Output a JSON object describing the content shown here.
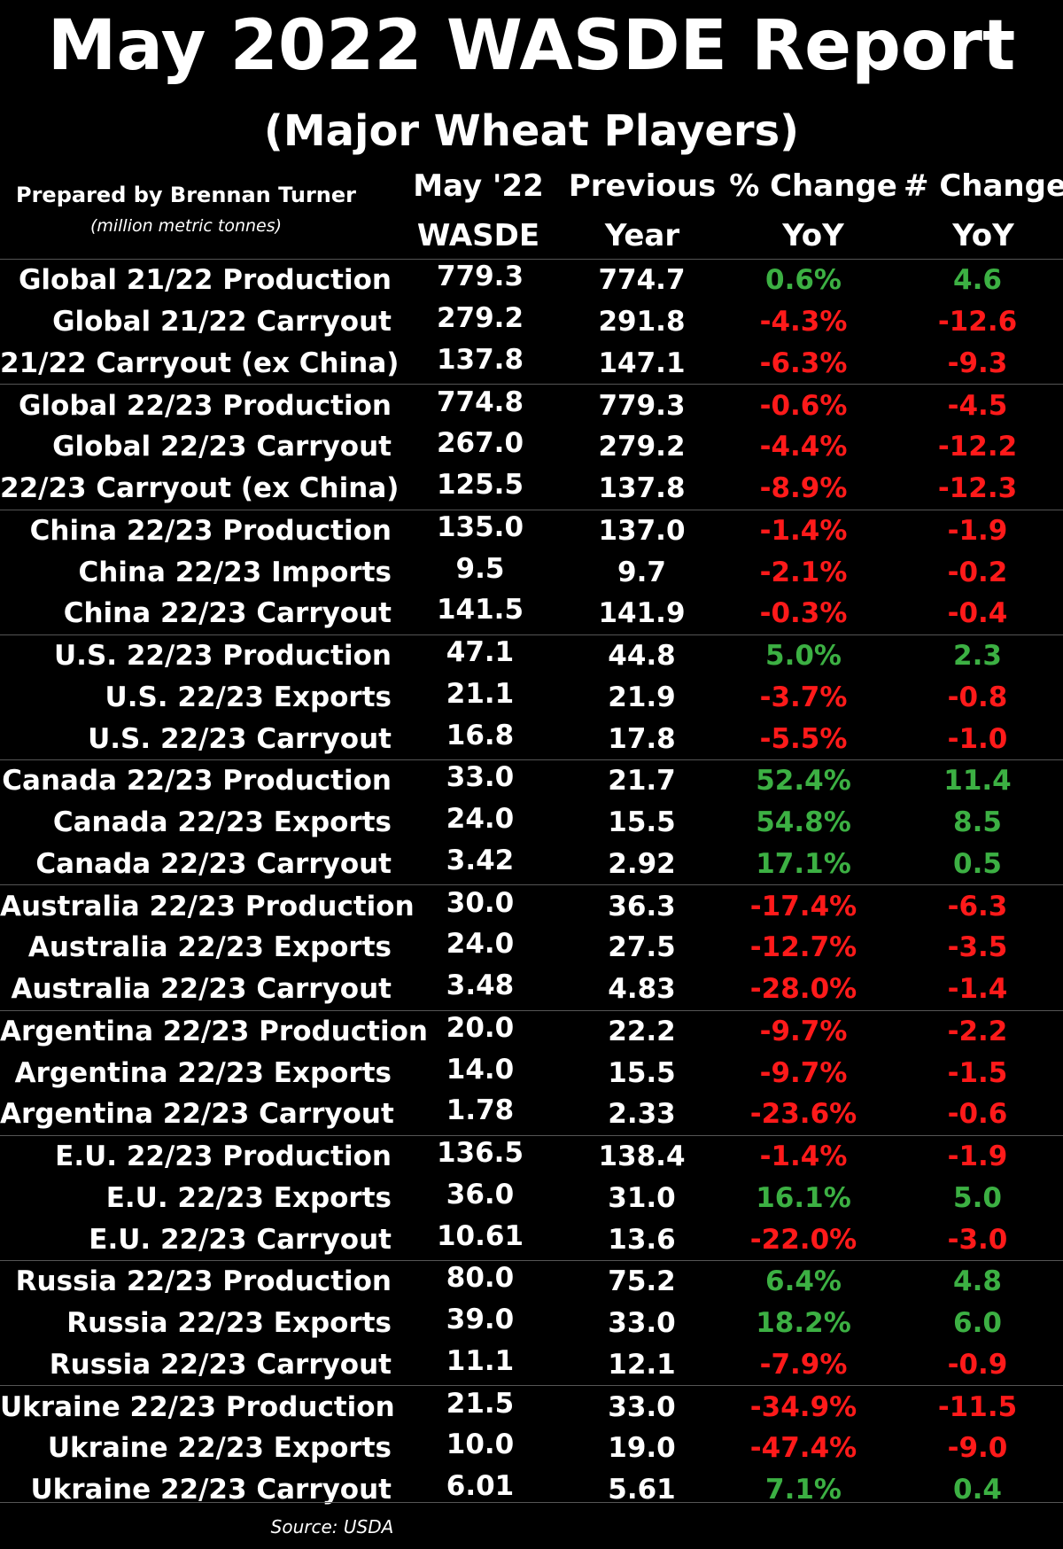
{
  "title": "May 2022 WASDE Report",
  "subtitle": "(Major Wheat Players)",
  "prepared_by": "Prepared by Brennan Turner",
  "units": "(million metric tonnes)",
  "headers": {
    "col1_line1": "May '22",
    "col1_line2": "WASDE",
    "col2_line1": "Previous",
    "col2_line2": "Year",
    "col3_line1": "% Change",
    "col3_line2": "YoY",
    "col4_line1": "# Change",
    "col4_line2": "YoY"
  },
  "colors": {
    "positive": "#3cb043",
    "negative": "#ff1a1a",
    "background": "#000000"
  },
  "rows": [
    {
      "label": "Global 21/22 Production",
      "wasde": "779.3",
      "prev": "774.7",
      "pct": "0.6%",
      "chg": "4.6",
      "dir": "pos",
      "end": false
    },
    {
      "label": "Global 21/22 Carryout",
      "wasde": "279.2",
      "prev": "291.8",
      "pct": "-4.3%",
      "chg": "-12.6",
      "dir": "neg",
      "end": false
    },
    {
      "label": "21/22 Carryout (ex China)",
      "wasde": "137.8",
      "prev": "147.1",
      "pct": "-6.3%",
      "chg": "-9.3",
      "dir": "neg",
      "end": true
    },
    {
      "label": "Global 22/23 Production",
      "wasde": "774.8",
      "prev": "779.3",
      "pct": "-0.6%",
      "chg": "-4.5",
      "dir": "neg",
      "end": false
    },
    {
      "label": "Global 22/23 Carryout",
      "wasde": "267.0",
      "prev": "279.2",
      "pct": "-4.4%",
      "chg": "-12.2",
      "dir": "neg",
      "end": false
    },
    {
      "label": "22/23 Carryout (ex China)",
      "wasde": "125.5",
      "prev": "137.8",
      "pct": "-8.9%",
      "chg": "-12.3",
      "dir": "neg",
      "end": true
    },
    {
      "label": "China 22/23 Production",
      "wasde": "135.0",
      "prev": "137.0",
      "pct": "-1.4%",
      "chg": "-1.9",
      "dir": "neg",
      "end": false
    },
    {
      "label": "China 22/23 Imports",
      "wasde": "9.5",
      "prev": "9.7",
      "pct": "-2.1%",
      "chg": "-0.2",
      "dir": "neg",
      "end": false
    },
    {
      "label": "China 22/23 Carryout",
      "wasde": "141.5",
      "prev": "141.9",
      "pct": "-0.3%",
      "chg": "-0.4",
      "dir": "neg",
      "end": true
    },
    {
      "label": "U.S. 22/23 Production",
      "wasde": "47.1",
      "prev": "44.8",
      "pct": "5.0%",
      "chg": "2.3",
      "dir": "pos",
      "end": false
    },
    {
      "label": "U.S. 22/23 Exports",
      "wasde": "21.1",
      "prev": "21.9",
      "pct": "-3.7%",
      "chg": "-0.8",
      "dir": "neg",
      "end": false
    },
    {
      "label": "U.S. 22/23 Carryout",
      "wasde": "16.8",
      "prev": "17.8",
      "pct": "-5.5%",
      "chg": "-1.0",
      "dir": "neg",
      "end": true
    },
    {
      "label": "Canada 22/23 Production",
      "wasde": "33.0",
      "prev": "21.7",
      "pct": "52.4%",
      "chg": "11.4",
      "dir": "pos",
      "end": false
    },
    {
      "label": "Canada 22/23 Exports",
      "wasde": "24.0",
      "prev": "15.5",
      "pct": "54.8%",
      "chg": "8.5",
      "dir": "pos",
      "end": false
    },
    {
      "label": "Canada 22/23 Carryout",
      "wasde": "3.42",
      "prev": "2.92",
      "pct": "17.1%",
      "chg": "0.5",
      "dir": "pos",
      "end": true
    },
    {
      "label": "Australia 22/23 Production",
      "wasde": "30.0",
      "prev": "36.3",
      "pct": "-17.4%",
      "chg": "-6.3",
      "dir": "neg",
      "end": false
    },
    {
      "label": "Australia 22/23 Exports",
      "wasde": "24.0",
      "prev": "27.5",
      "pct": "-12.7%",
      "chg": "-3.5",
      "dir": "neg",
      "end": false
    },
    {
      "label": "Australia 22/23 Carryout",
      "wasde": "3.48",
      "prev": "4.83",
      "pct": "-28.0%",
      "chg": "-1.4",
      "dir": "neg",
      "end": true
    },
    {
      "label": "Argentina 22/23 Production",
      "wasde": "20.0",
      "prev": "22.2",
      "pct": "-9.7%",
      "chg": "-2.2",
      "dir": "neg",
      "end": false
    },
    {
      "label": "Argentina 22/23 Exports",
      "wasde": "14.0",
      "prev": "15.5",
      "pct": "-9.7%",
      "chg": "-1.5",
      "dir": "neg",
      "end": false
    },
    {
      "label": "Argentina 22/23 Carryout",
      "wasde": "1.78",
      "prev": "2.33",
      "pct": "-23.6%",
      "chg": "-0.6",
      "dir": "neg",
      "end": true
    },
    {
      "label": "E.U. 22/23 Production",
      "wasde": "136.5",
      "prev": "138.4",
      "pct": "-1.4%",
      "chg": "-1.9",
      "dir": "neg",
      "end": false
    },
    {
      "label": "E.U. 22/23 Exports",
      "wasde": "36.0",
      "prev": "31.0",
      "pct": "16.1%",
      "chg": "5.0",
      "dir": "pos",
      "end": false
    },
    {
      "label": "E.U. 22/23 Carryout",
      "wasde": "10.61",
      "prev": "13.6",
      "pct": "-22.0%",
      "chg": "-3.0",
      "dir": "neg",
      "end": true
    },
    {
      "label": "Russia 22/23 Production",
      "wasde": "80.0",
      "prev": "75.2",
      "pct": "6.4%",
      "chg": "4.8",
      "dir": "pos",
      "end": false
    },
    {
      "label": "Russia 22/23 Exports",
      "wasde": "39.0",
      "prev": "33.0",
      "pct": "18.2%",
      "chg": "6.0",
      "dir": "pos",
      "end": false
    },
    {
      "label": "Russia 22/23 Carryout",
      "wasde": "11.1",
      "prev": "12.1",
      "pct": "-7.9%",
      "chg": "-0.9",
      "dir": "neg",
      "end": true
    },
    {
      "label": "Ukraine 22/23 Production",
      "wasde": "21.5",
      "prev": "33.0",
      "pct": "-34.9%",
      "chg": "-11.5",
      "dir": "neg",
      "end": false
    },
    {
      "label": "Ukraine 22/23 Exports",
      "wasde": "10.0",
      "prev": "19.0",
      "pct": "-47.4%",
      "chg": "-9.0",
      "dir": "neg",
      "end": false
    },
    {
      "label": "Ukraine 22/23 Carryout",
      "wasde": "6.01",
      "prev": "5.61",
      "pct": "7.1%",
      "chg": "0.4",
      "dir": "pos",
      "end": true
    }
  ],
  "source": "Source: USDA"
}
